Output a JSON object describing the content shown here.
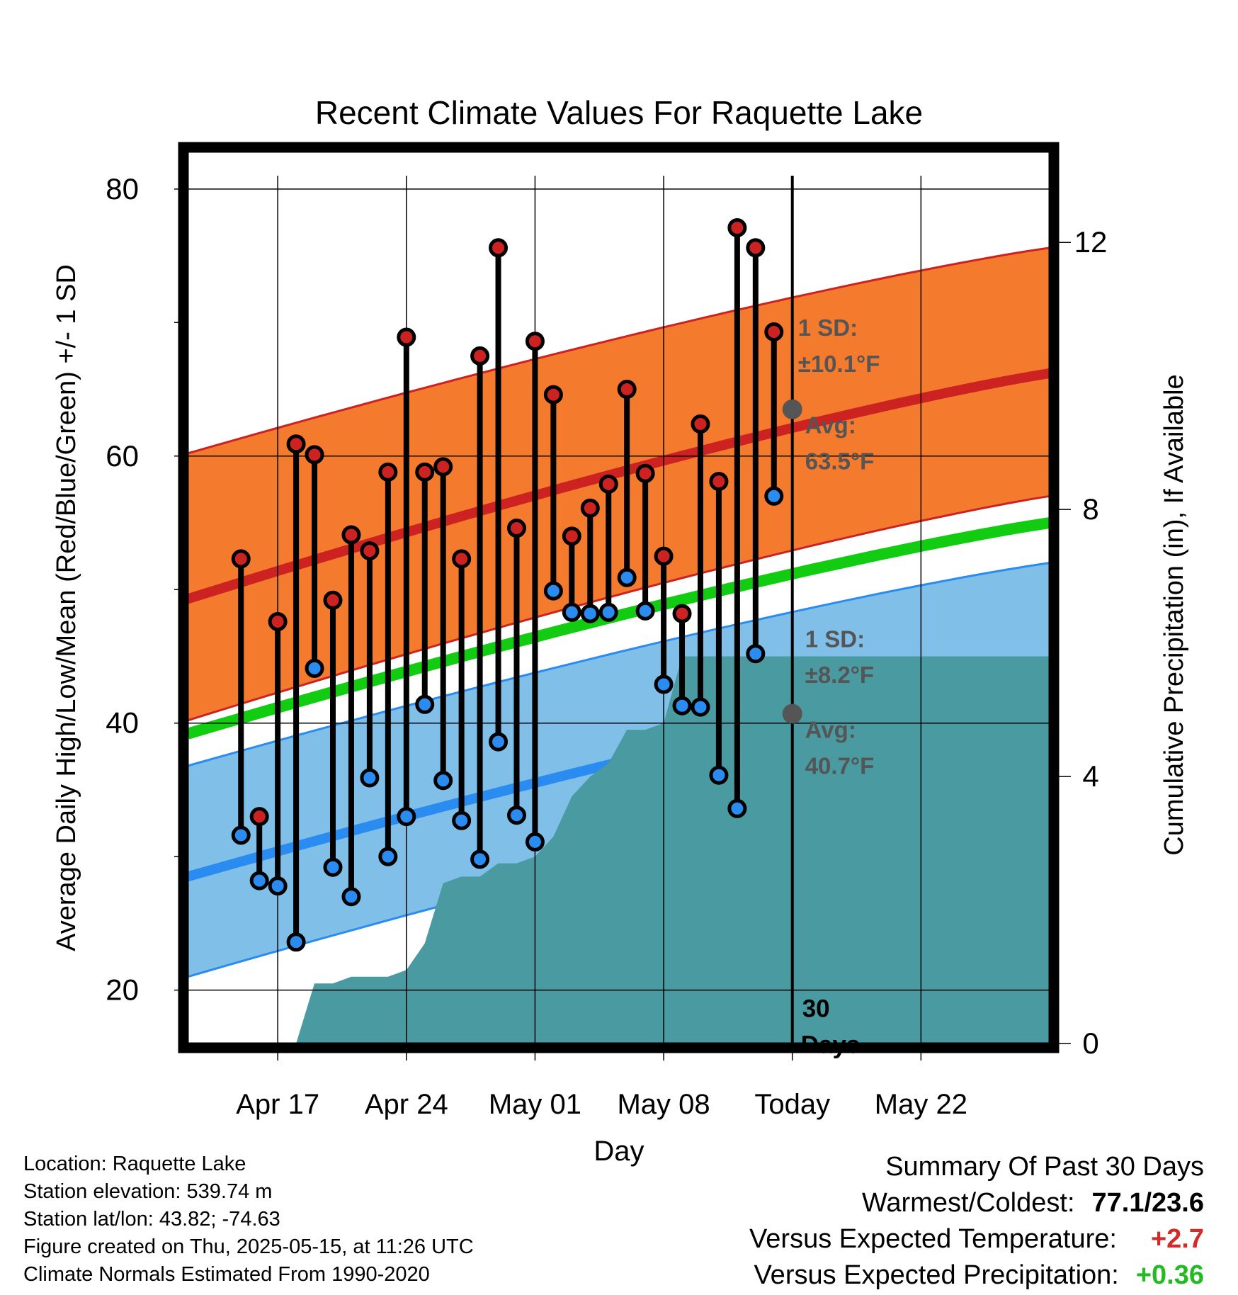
{
  "title": "Recent Climate Values For Raquette Lake",
  "chart_data": {
    "type": "line",
    "title": "Recent Climate Values For Raquette Lake",
    "xlabel": "Day",
    "ylabel": "Average Daily High/Low/Mean (Red/Blue/Green) +/- 1 SD",
    "y2label": "Cumulative Precipitation (in), If Available",
    "ylim": [
      16,
      81
    ],
    "y2lim": [
      0,
      13
    ],
    "y_ticks": [
      "80",
      "60",
      "40",
      "20"
    ],
    "y2_ticks": [
      "12",
      "8",
      "4",
      "0"
    ],
    "x_range_days": [
      -32.9,
      14.0
    ],
    "x_ticks": [
      {
        "day": -28,
        "label": "Apr 17"
      },
      {
        "day": -21,
        "label": "Apr 24"
      },
      {
        "day": -14,
        "label": "May 01"
      },
      {
        "day": -7,
        "label": "May 08"
      },
      {
        "day": 0,
        "label": "Today"
      },
      {
        "day": 7,
        "label": "May 22"
      }
    ],
    "today_marker": {
      "day": 0,
      "label_line1": "30",
      "label_line2": "Days"
    },
    "normals": {
      "high_mean": {
        "start": 49.3,
        "end": 66.2
      },
      "high_sd_upper": {
        "start": 60.2,
        "end": 75.6
      },
      "high_sd_lower": {
        "start": 40.2,
        "end": 57.0
      },
      "mean": {
        "start": 39.2,
        "end": 55.0
      },
      "low_mean": {
        "start": 28.5,
        "end": 43.8
      },
      "low_sd_upper": {
        "start": 36.8,
        "end": 52.0
      },
      "low_sd_lower": {
        "start": 21.0,
        "end": 36.6
      }
    },
    "series": [
      {
        "name": "High",
        "color": "#cc2222",
        "days": [
          -30,
          -29,
          -28,
          -27,
          -26,
          -25,
          -24,
          -23,
          -22,
          -21,
          -20,
          -19,
          -18,
          -17,
          -16,
          -15,
          -14,
          -13,
          -12,
          -11,
          -10,
          -9,
          -8,
          -7,
          -6,
          -5,
          -4,
          -3,
          -2,
          -1
        ],
        "values": [
          52.3,
          33.0,
          47.6,
          60.9,
          60.1,
          49.2,
          54.1,
          52.9,
          58.8,
          68.9,
          58.8,
          59.2,
          52.3,
          67.5,
          75.6,
          54.6,
          68.6,
          64.6,
          54.0,
          56.1,
          57.9,
          65.0,
          58.7,
          52.5,
          48.2,
          62.4,
          58.1,
          77.1,
          75.6,
          69.3
        ]
      },
      {
        "name": "Low",
        "color": "#2a8cf0",
        "days": [
          -30,
          -29,
          -28,
          -27,
          -26,
          -25,
          -24,
          -23,
          -22,
          -21,
          -20,
          -19,
          -18,
          -17,
          -16,
          -15,
          -14,
          -13,
          -12,
          -11,
          -10,
          -9,
          -8,
          -7,
          -6,
          -5,
          -4,
          -3,
          -2,
          -1
        ],
        "values": [
          31.6,
          28.2,
          27.8,
          23.6,
          44.1,
          29.2,
          27.0,
          35.9,
          30.0,
          33.0,
          41.4,
          35.7,
          32.7,
          29.8,
          38.6,
          33.1,
          31.1,
          49.9,
          48.3,
          48.2,
          48.3,
          50.9,
          48.4,
          42.9,
          41.3,
          41.2,
          36.1,
          33.6,
          45.2,
          57.0
        ]
      }
    ],
    "precipitation": {
      "days": [
        -28.0,
        -27.0,
        -26.0,
        -25.0,
        -24.0,
        -23.0,
        -22.0,
        -21.0,
        -20.0,
        -19.0,
        -18.0,
        -17.0,
        -16.0,
        -15.0,
        -14.0,
        -13.0,
        -12.0,
        -11.0,
        -10.0,
        -9.0,
        -8.0,
        -7.0,
        -6.0,
        -5.0,
        -4.0,
        -3.0,
        -2.0,
        -1.0,
        0.0,
        14.0
      ],
      "values": [
        0.0,
        0.0,
        0.9,
        0.9,
        1.0,
        1.0,
        1.0,
        1.1,
        1.5,
        2.4,
        2.5,
        2.5,
        2.7,
        2.7,
        2.8,
        3.1,
        3.7,
        4.0,
        4.2,
        4.7,
        4.7,
        4.8,
        5.8,
        5.8,
        5.8,
        5.8,
        5.8,
        5.8,
        5.8,
        5.8
      ]
    },
    "annotations": {
      "high_sd": {
        "line1": "1 SD:",
        "line2": "±10.1°F"
      },
      "high_avg": {
        "line1": "Avg:",
        "line2": "63.5°F",
        "value": 63.5
      },
      "low_sd": {
        "line1": "1 SD:",
        "line2": "±8.2°F"
      },
      "low_avg": {
        "line1": "Avg:",
        "line2": "40.7°F",
        "value": 40.7
      }
    },
    "colors": {
      "high_band": "#f47a2e",
      "high_band_edge": "#cc2222",
      "high_mean": "#cc2222",
      "mean": "#11cc11",
      "low_band": "#80c0e8",
      "low_band_edge": "#2a8cf0",
      "low_mean": "#2a8cf0",
      "precip": "#4a9aa2",
      "annotation": "#555555"
    }
  },
  "info": {
    "location": "Location: Raquette Lake",
    "elevation": "Station elevation: 539.74 m",
    "latlon": "Station lat/lon: 43.82; -74.63",
    "created": "Figure created on Thu, 2025-05-15, at 11:26 UTC",
    "normals": "Climate Normals Estimated From 1990-2020"
  },
  "summary": {
    "heading": "Summary Of Past 30 Days",
    "warmest_label": "Warmest/Coldest:",
    "warmest_value": "77.1/23.6",
    "temp_label": "Versus Expected Temperature:",
    "temp_value": "+2.7",
    "precip_label": "Versus Expected Precipitation:",
    "precip_value": "+0.36"
  }
}
